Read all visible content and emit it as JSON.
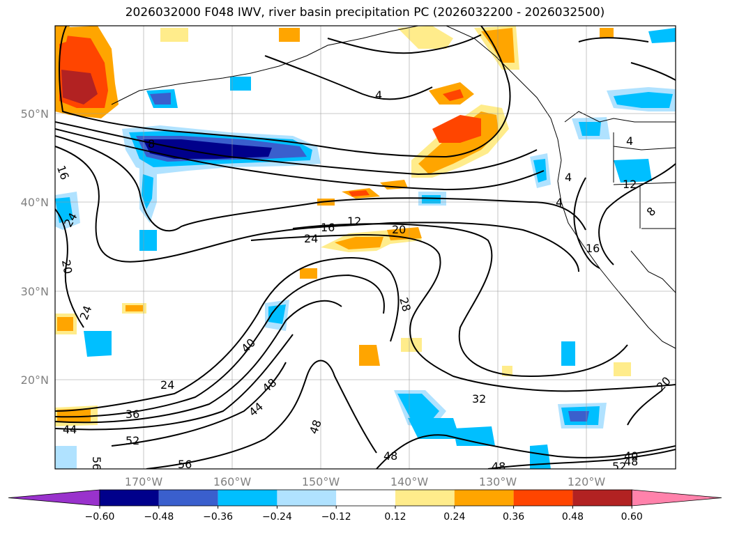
{
  "title": "2026032000 F048 IWV, river basin precipitation PC (2026032200 - 2026032500)",
  "map": {
    "projection": "plate-carree",
    "lon_range": [
      -180,
      -110
    ],
    "lat_range": [
      10,
      60
    ],
    "gridlines": true,
    "lat_labels": [
      "50°N",
      "40°N",
      "30°N",
      "20°N"
    ],
    "lat_values": [
      50,
      40,
      30,
      20
    ],
    "lon_labels": [
      "170°W",
      "160°W",
      "150°W",
      "140°W",
      "130°W",
      "120°W"
    ],
    "lon_values": [
      -170,
      -160,
      -150,
      -140,
      -130,
      -120
    ]
  },
  "contour_labels": [
    "8",
    "16",
    "24",
    "20",
    "24",
    "16",
    "12",
    "20",
    "24",
    "4",
    "28",
    "32",
    "40",
    "24",
    "36",
    "44",
    "48",
    "44",
    "48",
    "52",
    "56",
    "56",
    "48",
    "48",
    "40",
    "48",
    "52",
    "20",
    "16",
    "12",
    "8",
    "4",
    "4",
    "4"
  ],
  "colorbar": {
    "ticks": [
      "−0.60",
      "−0.48",
      "−0.36",
      "−0.24",
      "−0.12",
      "0.12",
      "0.24",
      "0.36",
      "0.48",
      "0.60"
    ],
    "colors": [
      "#9932cc",
      "#00008b",
      "#3a5fcd",
      "#00bfff",
      "#b0e2ff",
      "#ffffff",
      "#ffec8b",
      "#ffa500",
      "#ff4500",
      "#b22222",
      "#ff82ab"
    ],
    "extend": "both"
  }
}
